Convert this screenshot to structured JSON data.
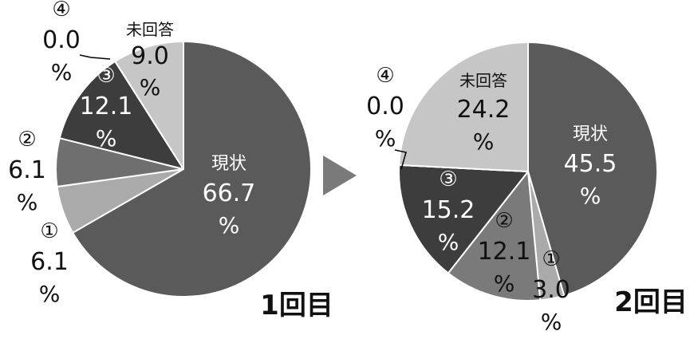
{
  "chart_data": [
    {
      "type": "pie",
      "caption": "1回目",
      "slices": [
        {
          "label": "現状",
          "value": 66.7,
          "value_text": "66.7",
          "unit": "%",
          "color": "#5a5a5a"
        },
        {
          "label": "①",
          "value": 6.1,
          "value_text": "6.1",
          "unit": "%",
          "color": "#aaaaaa"
        },
        {
          "label": "②",
          "value": 6.1,
          "value_text": "6.1",
          "unit": "%",
          "color": "#6f6f6f"
        },
        {
          "label": "③",
          "value": 12.1,
          "value_text": "12.1",
          "unit": "%",
          "color": "#3d3d3d"
        },
        {
          "label": "④",
          "value": 0.0,
          "value_text": "0.0",
          "unit": "%",
          "color": "#3d3d3d"
        },
        {
          "label": "未回答",
          "value": 9.0,
          "value_text": "9.0",
          "unit": "%",
          "color": "#c6c6c6"
        }
      ]
    },
    {
      "type": "pie",
      "caption": "2回目",
      "slices": [
        {
          "label": "現状",
          "value": 45.5,
          "value_text": "45.5",
          "unit": "%",
          "color": "#5a5a5a"
        },
        {
          "label": "①",
          "value": 3.0,
          "value_text": "3.0",
          "unit": "%",
          "color": "#aaaaaa"
        },
        {
          "label": "②",
          "value": 12.1,
          "value_text": "12.1",
          "unit": "%",
          "color": "#7a7a7a"
        },
        {
          "label": "③",
          "value": 15.2,
          "value_text": "15.2",
          "unit": "%",
          "color": "#3d3d3d"
        },
        {
          "label": "④",
          "value": 0.0,
          "value_text": "0.0",
          "unit": "%",
          "color": "#3d3d3d"
        },
        {
          "label": "未回答",
          "value": 24.2,
          "value_text": "24.2",
          "unit": "%",
          "color": "#c6c6c6"
        }
      ]
    }
  ],
  "arrow_color": "#7a7a7a"
}
